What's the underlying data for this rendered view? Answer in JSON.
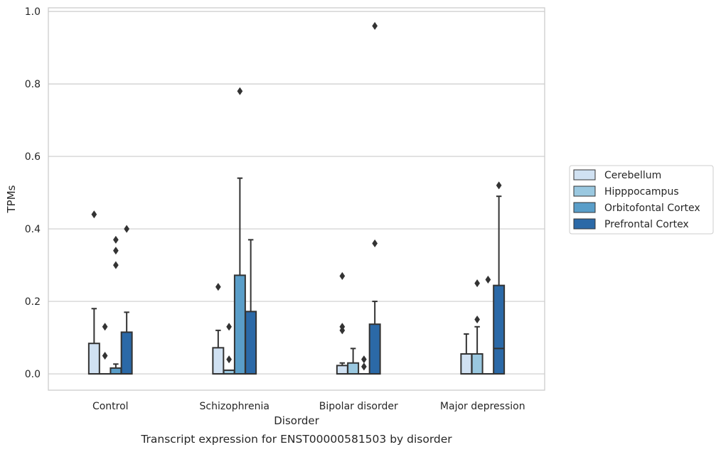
{
  "caption": "Transcript expression for ENST00000581503 by disorder",
  "chart_data": {
    "type": "box",
    "xlabel": "Disorder",
    "ylabel": "TPMs",
    "ylim": [
      -0.045,
      1.01
    ],
    "yticks": [
      "0.0",
      "0.2",
      "0.4",
      "0.6",
      "0.8",
      "1.0"
    ],
    "grid": "horizontal",
    "legend_position": "right",
    "categories": [
      "Control",
      "Schizophrenia",
      "Bipolar disorder",
      "Major depression"
    ],
    "series": [
      {
        "name": "Cerebellum",
        "color": "#d0e1f2",
        "boxes": [
          {
            "q1": 0.0,
            "median": 0.0,
            "q3": 0.084,
            "whisker_low": 0.0,
            "whisker_high": 0.18,
            "outliers": [
              0.44
            ]
          },
          {
            "q1": 0.0,
            "median": 0.0,
            "q3": 0.072,
            "whisker_low": 0.0,
            "whisker_high": 0.12,
            "outliers": [
              0.24
            ]
          },
          {
            "q1": 0.0,
            "median": 0.0,
            "q3": 0.023,
            "whisker_low": 0.0,
            "whisker_high": 0.03,
            "outliers": [
              0.12,
              0.13,
              0.27
            ]
          },
          {
            "q1": 0.0,
            "median": 0.0,
            "q3": 0.055,
            "whisker_low": 0.0,
            "whisker_high": 0.11,
            "outliers": []
          }
        ]
      },
      {
        "name": "Hipppocampus",
        "color": "#9ac8e0",
        "boxes": [
          {
            "q1": 0.0,
            "median": 0.0,
            "q3": 0.0,
            "whisker_low": 0.0,
            "whisker_high": 0.0,
            "outliers": [
              0.05,
              0.13
            ]
          },
          {
            "q1": 0.0,
            "median": 0.0,
            "q3": 0.01,
            "whisker_low": 0.0,
            "whisker_high": 0.01,
            "outliers": [
              0.04,
              0.13
            ]
          },
          {
            "q1": 0.0,
            "median": 0.0,
            "q3": 0.03,
            "whisker_low": 0.0,
            "whisker_high": 0.07,
            "outliers": []
          },
          {
            "q1": 0.0,
            "median": 0.0,
            "q3": 0.055,
            "whisker_low": 0.0,
            "whisker_high": 0.13,
            "outliers": [
              0.15,
              0.25
            ]
          }
        ]
      },
      {
        "name": "Orbitofontal Cortex",
        "color": "#5a9ec9",
        "boxes": [
          {
            "q1": 0.0,
            "median": 0.0,
            "q3": 0.016,
            "whisker_low": 0.0,
            "whisker_high": 0.027,
            "outliers": [
              0.3,
              0.34,
              0.37
            ]
          },
          {
            "q1": 0.0,
            "median": 0.0,
            "q3": 0.272,
            "whisker_low": 0.0,
            "whisker_high": 0.54,
            "outliers": [
              0.78
            ]
          },
          {
            "q1": 0.0,
            "median": 0.0,
            "q3": 0.0,
            "whisker_low": 0.0,
            "whisker_high": 0.0,
            "outliers": [
              0.02,
              0.04
            ]
          },
          {
            "q1": 0.0,
            "median": 0.0,
            "q3": 0.0,
            "whisker_low": 0.0,
            "whisker_high": 0.0,
            "outliers": [
              0.26
            ]
          }
        ]
      },
      {
        "name": "Prefrontal Cortex",
        "color": "#2b69a7",
        "boxes": [
          {
            "q1": 0.0,
            "median": 0.0,
            "q3": 0.115,
            "whisker_low": 0.0,
            "whisker_high": 0.17,
            "outliers": [
              0.4
            ]
          },
          {
            "q1": 0.0,
            "median": 0.0,
            "q3": 0.172,
            "whisker_low": 0.0,
            "whisker_high": 0.37,
            "outliers": []
          },
          {
            "q1": 0.0,
            "median": 0.0,
            "q3": 0.137,
            "whisker_low": 0.0,
            "whisker_high": 0.2,
            "outliers": [
              0.36,
              0.96
            ]
          },
          {
            "q1": 0.0,
            "median": 0.07,
            "q3": 0.244,
            "whisker_low": 0.0,
            "whisker_high": 0.49,
            "outliers": [
              0.52
            ]
          }
        ]
      }
    ],
    "style": {
      "edge_color": "#333333",
      "grid_color": "#cccccc",
      "frame_color": "#cccccc"
    }
  }
}
